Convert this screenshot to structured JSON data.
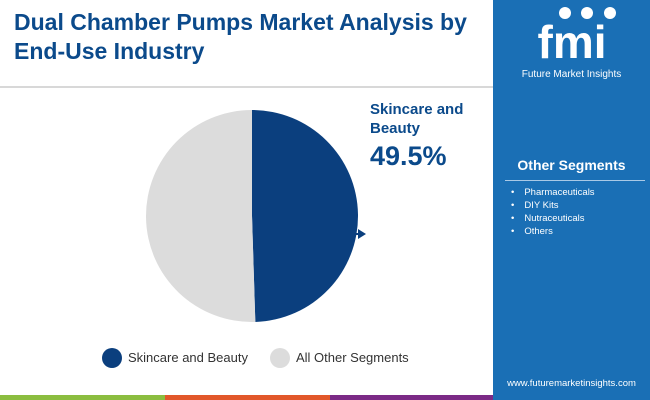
{
  "title": "Dual Chamber Pumps Market Analysis by End-Use Industry",
  "brand": {
    "name": "Future Market Insights",
    "logo_text": "fmi",
    "url": "www.futuremarketinsights.com"
  },
  "other_segments": {
    "title": "Other Segments",
    "items": [
      "Pharmaceuticals",
      "DIY Kits",
      "Nutraceuticals",
      "Others"
    ]
  },
  "chart_data": {
    "type": "pie",
    "categories": [
      "Skincare and Beauty",
      "All Other Segments"
    ],
    "values": [
      49.5,
      50.5
    ],
    "colors": [
      "#0b3f7e",
      "#dcdcdc"
    ],
    "callout": {
      "label": "Skincare and Beauty",
      "value": "49.5%"
    },
    "legend_position": "bottom"
  },
  "colors": {
    "accent": "#0b4a8b",
    "sidebar": "#1a6fb5",
    "stripe": [
      "#8bbd3f",
      "#e2572a",
      "#7b2a86",
      "#1a6fb5"
    ]
  }
}
